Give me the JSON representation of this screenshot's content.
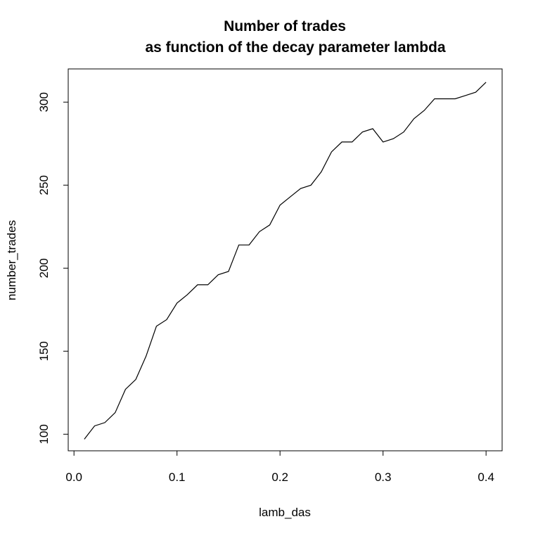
{
  "chart_data": {
    "type": "line",
    "title": "Number of trades",
    "subtitle": "as function of the decay parameter lambda",
    "xlabel": "lamb_das",
    "ylabel": "number_trades",
    "x_ticks": [
      0.0,
      0.1,
      0.2,
      0.3,
      0.4
    ],
    "x_tick_labels": [
      "0.0",
      "0.1",
      "0.2",
      "0.3",
      "0.4"
    ],
    "y_ticks": [
      100,
      150,
      200,
      250,
      300
    ],
    "y_tick_labels": [
      "100",
      "150",
      "200",
      "250",
      "300"
    ],
    "xlim": [
      -0.0056,
      0.4156
    ],
    "ylim": [
      90,
      320
    ],
    "grid": false,
    "legend": "none",
    "line_color": "#000000",
    "x": [
      0.01,
      0.02,
      0.03,
      0.04,
      0.05,
      0.06,
      0.07,
      0.08,
      0.09,
      0.1,
      0.11,
      0.12,
      0.13,
      0.14,
      0.15,
      0.16,
      0.17,
      0.18,
      0.19,
      0.2,
      0.21,
      0.22,
      0.23,
      0.24,
      0.25,
      0.26,
      0.27,
      0.28,
      0.29,
      0.3,
      0.31,
      0.32,
      0.33,
      0.34,
      0.35,
      0.36,
      0.37,
      0.38,
      0.39,
      0.4
    ],
    "y": [
      97,
      105,
      107,
      113,
      127,
      133,
      147,
      165,
      169,
      179,
      184,
      190,
      190,
      196,
      198,
      214,
      214,
      222,
      226,
      238,
      243,
      248,
      250,
      258,
      270,
      276,
      276,
      282,
      284,
      276,
      278,
      282,
      290,
      295,
      302,
      302,
      302,
      304,
      306,
      312
    ]
  }
}
